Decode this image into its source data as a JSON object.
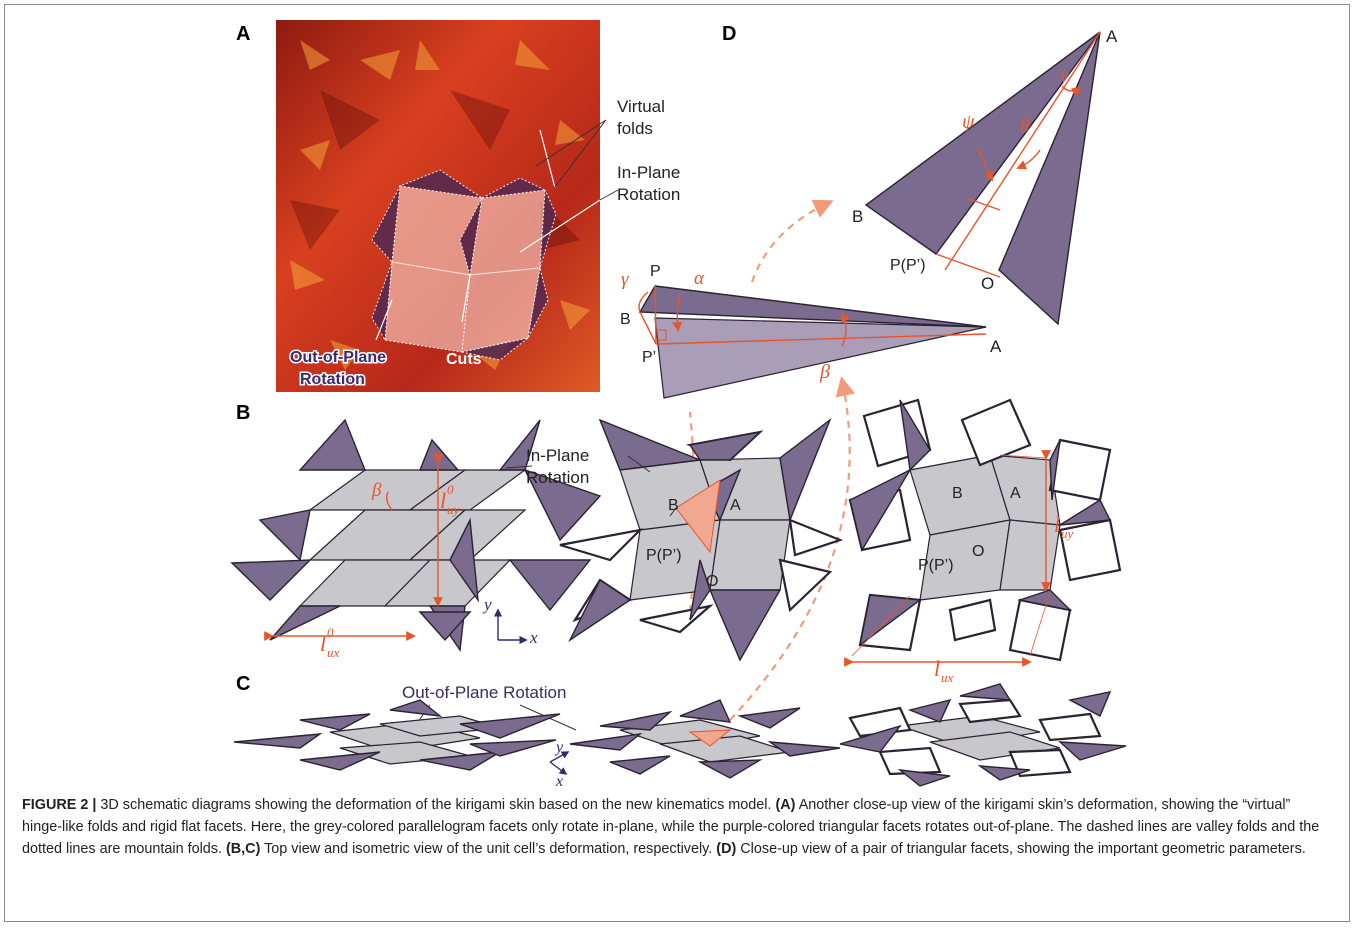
{
  "panels": {
    "a": "A",
    "b": "B",
    "c": "C",
    "d": "D"
  },
  "panel_a": {
    "virtual_folds": [
      "Virtual",
      "folds"
    ],
    "in_plane": [
      "In-Plane",
      "Rotation"
    ],
    "out_of_plane": [
      "Out-of-Plane",
      "Rotation"
    ],
    "cuts": "Cuts"
  },
  "panel_b": {
    "in_plane": [
      "In-Plane",
      "Rotation"
    ],
    "beta": "β",
    "luy0_base": "l",
    "luy0_sub": "uy",
    "luy0_sup": "0",
    "lux0_base": "l",
    "lux0_sub": "ux",
    "lux0_sup": "0",
    "axis_y": "y",
    "axis_x": "x",
    "mid_B": "B",
    "mid_A": "A",
    "mid_P": "P(P’)",
    "mid_O": "O",
    "right_B": "B",
    "right_A": "A",
    "right_P": "P(P’)",
    "right_O": "O",
    "luy_base": "l",
    "luy_sub": "uy",
    "lux_base": "l",
    "lux_sub": "ux"
  },
  "panel_c": {
    "out_of_plane": "Out-of-Plane Rotation",
    "axis_y": "y",
    "axis_x": "x"
  },
  "panel_d": {
    "A_top": "A",
    "B_top": "B",
    "P_top": "P(P’)",
    "O_top": "O",
    "nu": "ν",
    "psi": "ψ",
    "theta": "θ",
    "gamma": "γ",
    "alpha": "α",
    "beta": "β",
    "P": "P",
    "B": "B",
    "P_prime": "P’",
    "A": "A"
  },
  "caption": {
    "figure_label": "FIGURE 2 |",
    "intro": " 3D schematic diagrams showing the deformation of the kirigami skin based on the new kinematics model. ",
    "a_label": "(A)",
    "a_text": " Another close-up view of the kirigami skin’s deformation, showing the “virtual” hinge-like folds and rigid flat facets. Here, the grey-colored parallelogram facets only rotate in-plane, while the purple-colored triangular facets rotates out-of-plane. The dashed lines are valley folds and the dotted lines are mountain folds. ",
    "bc_label": "(B,C)",
    "bc_text": " Top view and isometric view of the unit cell’s deformation, respectively. ",
    "d_label": "(D)",
    "d_text": " Close-up view of a pair of triangular facets, showing the important geometric parameters."
  },
  "colors": {
    "accent_orange": "#e8552a",
    "facet_purple": "#7b6b8f",
    "facet_grey": "#c8c8cc",
    "photo_red": "#c8301a"
  }
}
